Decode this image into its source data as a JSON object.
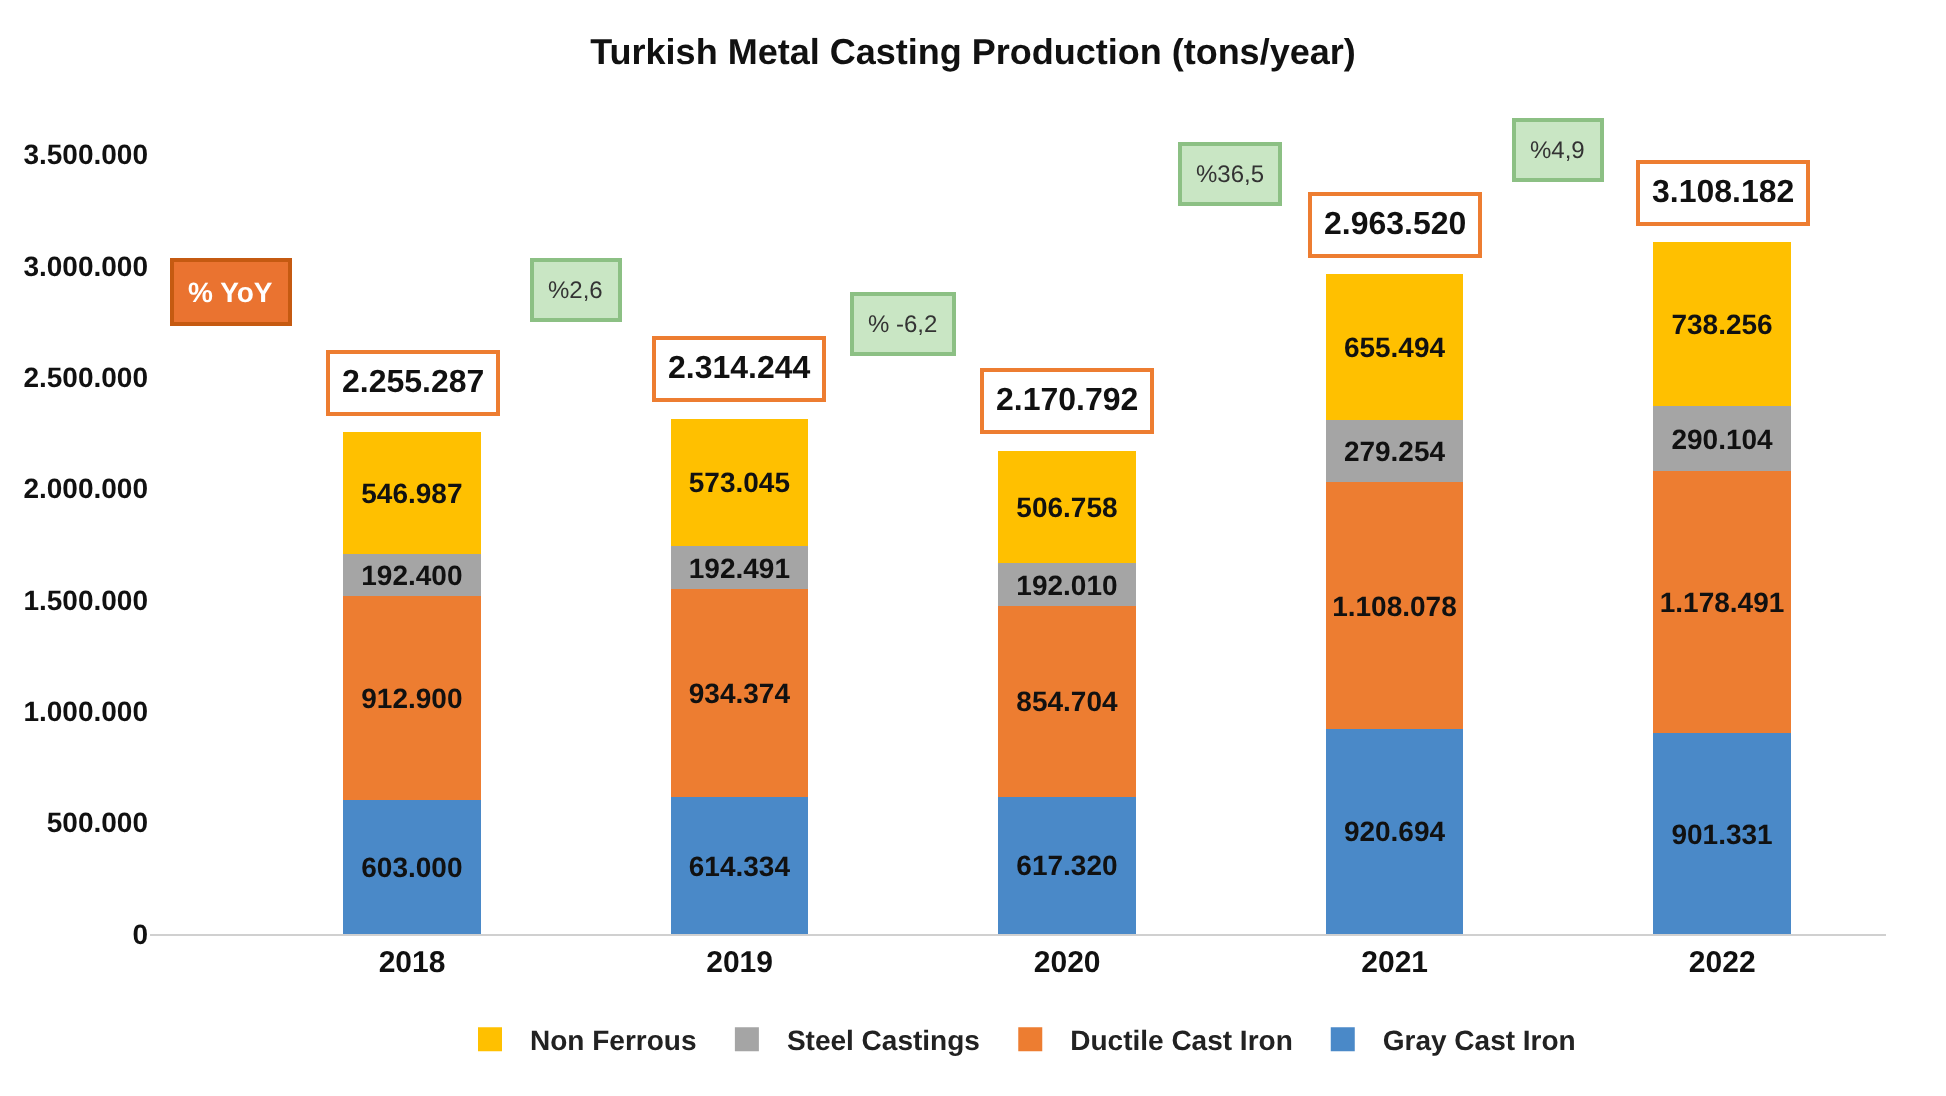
{
  "chart_data": {
    "type": "bar",
    "title": "Turkish Metal Casting Production (tons/year)",
    "categories": [
      "2018",
      "2019",
      "2020",
      "2021",
      "2022"
    ],
    "stacked": true,
    "series": [
      {
        "name": "Gray Cast Iron",
        "color": "#4a89c8",
        "values": [
          603000,
          614334,
          617320,
          920694,
          901331
        ],
        "value_labels": [
          "603.000",
          "614.334",
          "617.320",
          "920.694",
          "901.331"
        ]
      },
      {
        "name": "Ductile Cast Iron",
        "color": "#ed7d31",
        "values": [
          912900,
          934374,
          854704,
          1108078,
          1178491
        ],
        "value_labels": [
          "912.900",
          "934.374",
          "854.704",
          "1.108.078",
          "1.178.491"
        ]
      },
      {
        "name": "Steel Castings",
        "color": "#a5a5a5",
        "values": [
          192400,
          192491,
          192010,
          279254,
          290104
        ],
        "value_labels": [
          "192.400",
          "192.491",
          "192.010",
          "279.254",
          "290.104"
        ]
      },
      {
        "name": "Non Ferrous",
        "color": "#ffc000",
        "values": [
          546987,
          573045,
          506758,
          655494,
          738256
        ],
        "value_labels": [
          "546.987",
          "573.045",
          "506.758",
          "655.494",
          "738.256"
        ]
      }
    ],
    "totals": [
      "2.255.287",
      "2.314.244",
      "2.170.792",
      "2.963.520",
      "3.108.182"
    ],
    "annotations": [
      "% YoY",
      "%2,6",
      "% -6,2",
      "%36,5",
      "%4,9"
    ],
    "ylim": [
      0,
      3700000
    ],
    "yticks": [
      {
        "value": 0,
        "label": "0"
      },
      {
        "value": 500000,
        "label": "500.000"
      },
      {
        "value": 1000000,
        "label": "1.000.000"
      },
      {
        "value": 1500000,
        "label": "1.500.000"
      },
      {
        "value": 2000000,
        "label": "2.000.000"
      },
      {
        "value": 2500000,
        "label": "2.500.000"
      },
      {
        "value": 3000000,
        "label": "3.000.000"
      },
      {
        "value": 3500000,
        "label": "3.500.000"
      }
    ],
    "legend": "bottom"
  }
}
